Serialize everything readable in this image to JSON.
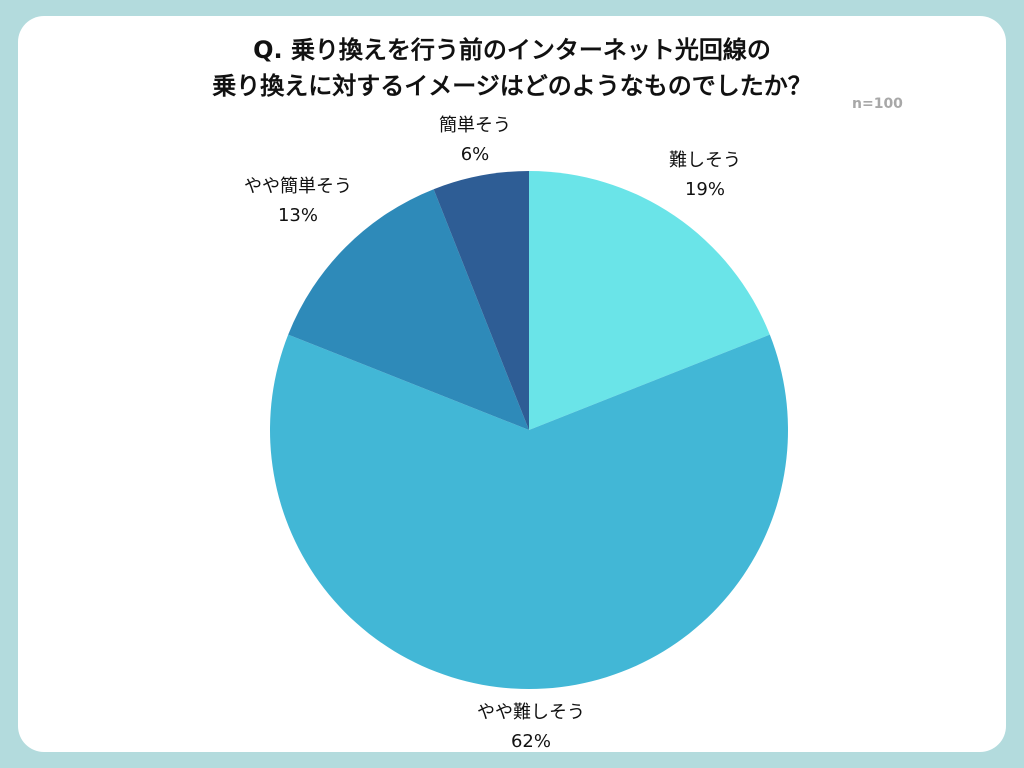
{
  "chart_data": {
    "type": "pie",
    "title": [
      "Q. 乗り換えを行う前のインターネット光回線の",
      "乗り換えに対するイメージはどのようなものでしたか？"
    ],
    "sample_size": "n=100",
    "slices": [
      {
        "label": "難しそう",
        "value": 19,
        "value_label": "19%",
        "color": "#6ae4e8"
      },
      {
        "label": "やや難しそう",
        "value": 62,
        "value_label": "62%",
        "color": "#42b7d6"
      },
      {
        "label": "やや簡単そう",
        "value": 13,
        "value_label": "13%",
        "color": "#2e8ab9"
      },
      {
        "label": "簡単そう",
        "value": 6,
        "value_label": "6%",
        "color": "#2e5d95"
      }
    ],
    "start_angle": "12 o'clock",
    "direction": "clockwise",
    "legend": "none"
  },
  "colors": {
    "background": "#b3dbdd",
    "card": "#ffffff",
    "slice_border": "#ffffff"
  }
}
